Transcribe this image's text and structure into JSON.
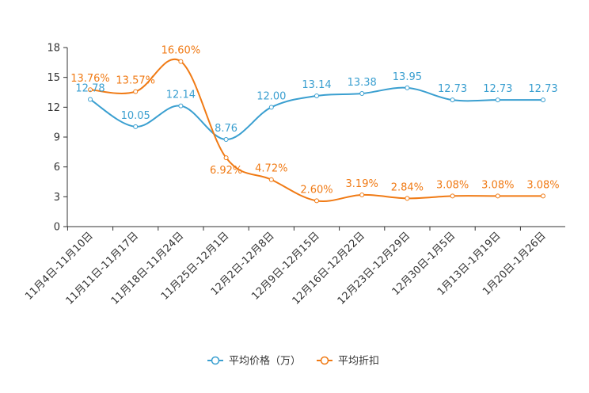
{
  "chart_data": {
    "type": "line",
    "title": "",
    "xlabel": "",
    "ylabel": "",
    "ylim": [
      0,
      18
    ],
    "yticks": [
      0,
      3,
      6,
      9,
      12,
      15,
      18
    ],
    "grid": false,
    "legend_position": "bottom-center",
    "categories": [
      "11月4日-11月10日",
      "11月11日-11月17日",
      "11月18日-11月24日",
      "11月25日-12月1日",
      "12月2日-12月8日",
      "12月9日-12月15日",
      "12月16日-12月22日",
      "12月23日-12月29日",
      "12月30日-1月5日",
      "1月13日-1月19日",
      "1月20日-1月26日"
    ],
    "series": [
      {
        "name": "平均价格（万）",
        "color": "#3a9fd0",
        "values": [
          12.78,
          10.05,
          12.14,
          8.76,
          12.0,
          13.14,
          13.38,
          13.95,
          12.73,
          12.73,
          12.73
        ],
        "labels": [
          "12.78",
          "10.05",
          "12.14",
          "8.76",
          "12.00",
          "13.14",
          "13.38",
          "13.95",
          "12.73",
          "12.73",
          "12.73"
        ]
      },
      {
        "name": "平均折扣",
        "color": "#f07a14",
        "values": [
          13.76,
          13.57,
          16.6,
          6.92,
          4.72,
          2.6,
          3.19,
          2.84,
          3.08,
          3.08,
          3.08
        ],
        "labels": [
          "13.76%",
          "13.57%",
          "16.60%",
          "6.92%",
          "4.72%",
          "2.60%",
          "3.19%",
          "2.84%",
          "3.08%",
          "3.08%",
          "3.08%"
        ]
      }
    ]
  }
}
